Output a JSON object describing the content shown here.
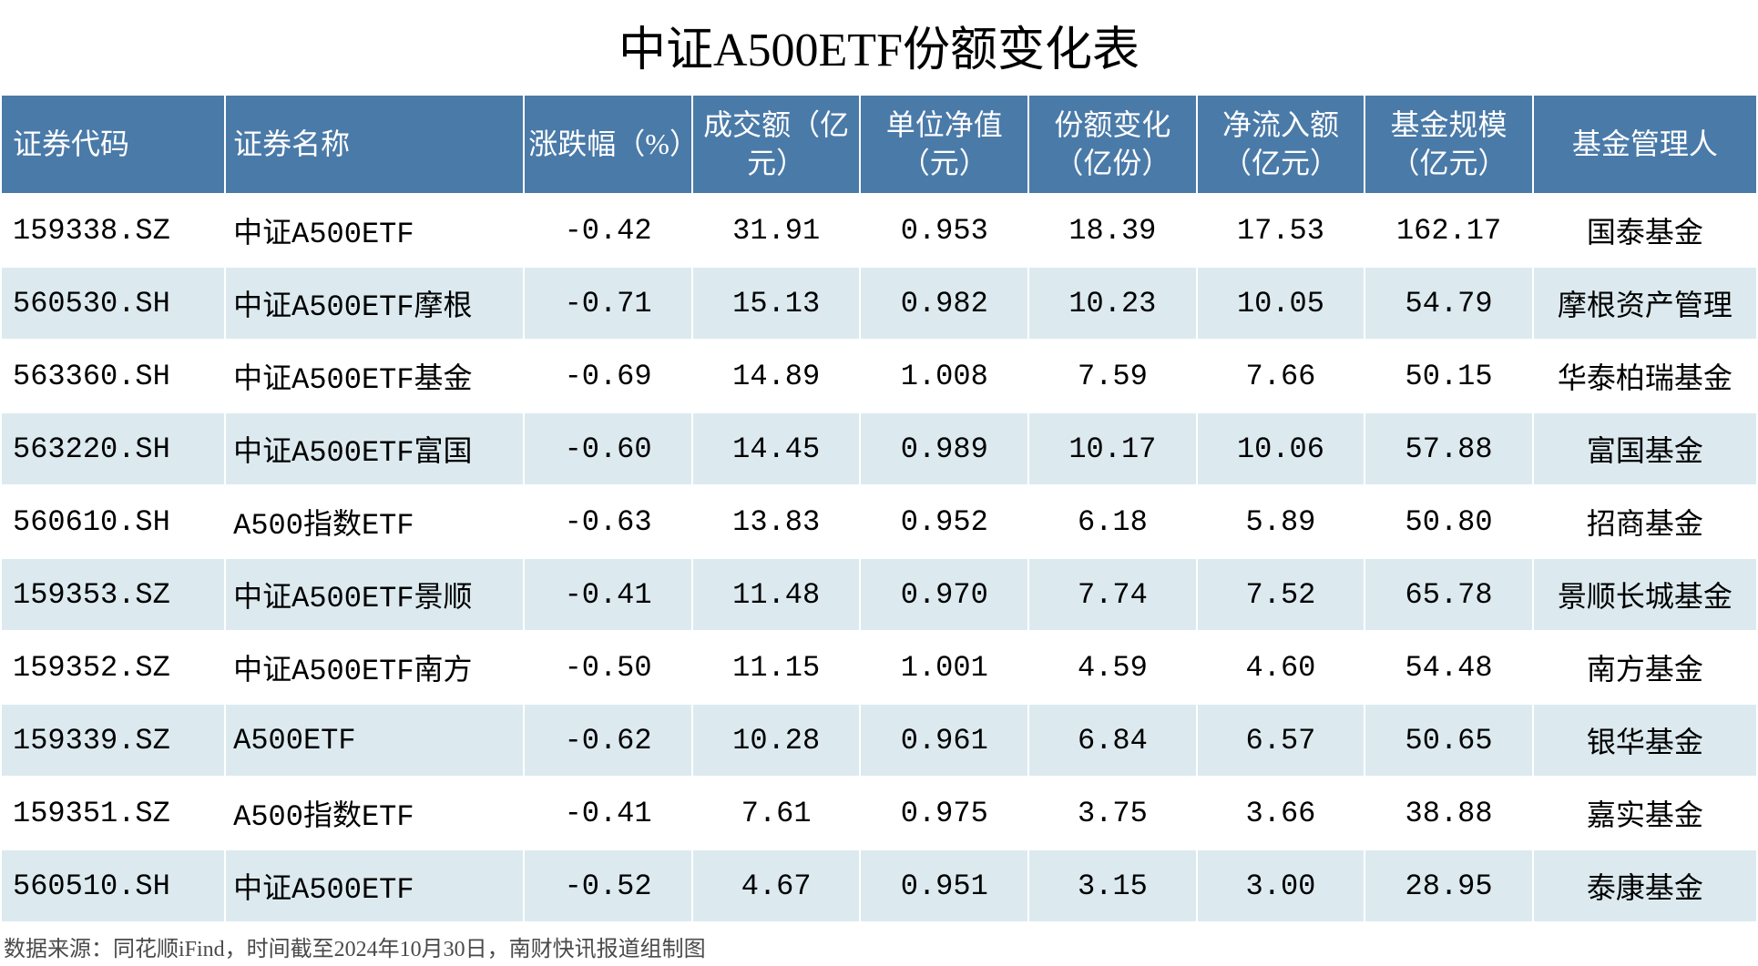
{
  "title": "中证A500ETF份额变化表",
  "columns": [
    "证券代码",
    "证券名称",
    "涨跌幅（%）",
    "成交额（亿元）",
    "单位净值（元）",
    "份额变化（亿份）",
    "净流入额（亿元）",
    "基金规模（亿元）",
    "基金管理人"
  ],
  "rows": [
    {
      "code": "159338.SZ",
      "name": "中证A500ETF",
      "change": "-0.42",
      "volume": "31.91",
      "nav": "0.953",
      "share_change": "18.39",
      "net_inflow": "17.53",
      "scale": "162.17",
      "manager": "国泰基金"
    },
    {
      "code": "560530.SH",
      "name": "中证A500ETF摩根",
      "change": "-0.71",
      "volume": "15.13",
      "nav": "0.982",
      "share_change": "10.23",
      "net_inflow": "10.05",
      "scale": "54.79",
      "manager": "摩根资产管理"
    },
    {
      "code": "563360.SH",
      "name": "中证A500ETF基金",
      "change": "-0.69",
      "volume": "14.89",
      "nav": "1.008",
      "share_change": "7.59",
      "net_inflow": "7.66",
      "scale": "50.15",
      "manager": "华泰柏瑞基金"
    },
    {
      "code": "563220.SH",
      "name": "中证A500ETF富国",
      "change": "-0.60",
      "volume": "14.45",
      "nav": "0.989",
      "share_change": "10.17",
      "net_inflow": "10.06",
      "scale": "57.88",
      "manager": "富国基金"
    },
    {
      "code": "560610.SH",
      "name": "A500指数ETF",
      "change": "-0.63",
      "volume": "13.83",
      "nav": "0.952",
      "share_change": "6.18",
      "net_inflow": "5.89",
      "scale": "50.80",
      "manager": "招商基金"
    },
    {
      "code": "159353.SZ",
      "name": "中证A500ETF景顺",
      "change": "-0.41",
      "volume": "11.48",
      "nav": "0.970",
      "share_change": "7.74",
      "net_inflow": "7.52",
      "scale": "65.78",
      "manager": "景顺长城基金"
    },
    {
      "code": "159352.SZ",
      "name": "中证A500ETF南方",
      "change": "-0.50",
      "volume": "11.15",
      "nav": "1.001",
      "share_change": "4.59",
      "net_inflow": "4.60",
      "scale": "54.48",
      "manager": "南方基金"
    },
    {
      "code": "159339.SZ",
      "name": "A500ETF",
      "change": "-0.62",
      "volume": "10.28",
      "nav": "0.961",
      "share_change": "6.84",
      "net_inflow": "6.57",
      "scale": "50.65",
      "manager": "银华基金"
    },
    {
      "code": "159351.SZ",
      "name": "A500指数ETF",
      "change": "-0.41",
      "volume": "7.61",
      "nav": "0.975",
      "share_change": "3.75",
      "net_inflow": "3.66",
      "scale": "38.88",
      "manager": "嘉实基金"
    },
    {
      "code": "560510.SH",
      "name": "中证A500ETF",
      "change": "-0.52",
      "volume": "4.67",
      "nav": "0.951",
      "share_change": "3.15",
      "net_inflow": "3.00",
      "scale": "28.95",
      "manager": "泰康基金"
    }
  ],
  "footer": "数据来源：同花顺iFind，时间截至2024年10月30日，南财快讯报道组制图",
  "styling": {
    "header_bg": "#4a7aa8",
    "header_text": "#ffffff",
    "row_odd_bg": "#ffffff",
    "row_even_bg": "#dceaf0",
    "border_color": "#ffffff",
    "title_fontsize": 52,
    "header_fontsize": 32,
    "cell_fontsize": 32,
    "footer_fontsize": 24,
    "footer_color": "#4a4a4a"
  }
}
